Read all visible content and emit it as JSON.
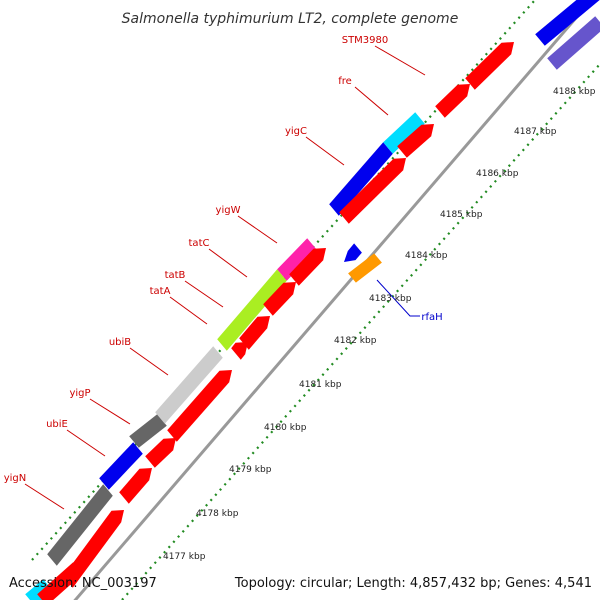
{
  "title": "Salmonella typhimurium LT2, complete genome",
  "footer": {
    "accession": "Accession: NC_003197",
    "topology": "Topology: circular; Length: 4,857,432 bp; Genes: 4,541"
  },
  "scale": {
    "unit": "kbp",
    "ticks": [
      "4177 kbp",
      "4178 kbp",
      "4179 kbp",
      "4180 kbp",
      "4181 kbp",
      "4182 kbp",
      "4183 kbp",
      "4184 kbp",
      "4185 kbp",
      "4186 kbp",
      "4187 kbp",
      "4188 kbp"
    ]
  },
  "colors": {
    "backbone": "#999999",
    "tick": "#228B22",
    "forward_label": "#cc0000",
    "reverse_label": "#0000cc",
    "red": "#ff0000",
    "blue": "#0000ee",
    "cyan": "#00ddff",
    "magenta": "#ff22aa",
    "lime": "#aaee22",
    "darkgray": "#666666",
    "lightgray": "#cccccc",
    "orange": "#ff9900",
    "purple": "#6655cc"
  },
  "labels": [
    {
      "name": "STM3980",
      "strand": "forward"
    },
    {
      "name": "fre",
      "strand": "forward"
    },
    {
      "name": "yigC",
      "strand": "forward"
    },
    {
      "name": "yigW",
      "strand": "forward"
    },
    {
      "name": "tatC",
      "strand": "forward"
    },
    {
      "name": "tatB",
      "strand": "forward"
    },
    {
      "name": "tatA",
      "strand": "forward"
    },
    {
      "name": "ubiB",
      "strand": "forward"
    },
    {
      "name": "yigP",
      "strand": "forward"
    },
    {
      "name": "ubiE",
      "strand": "forward"
    },
    {
      "name": "yigN",
      "strand": "forward"
    },
    {
      "name": "rfaH",
      "strand": "reverse"
    }
  ]
}
